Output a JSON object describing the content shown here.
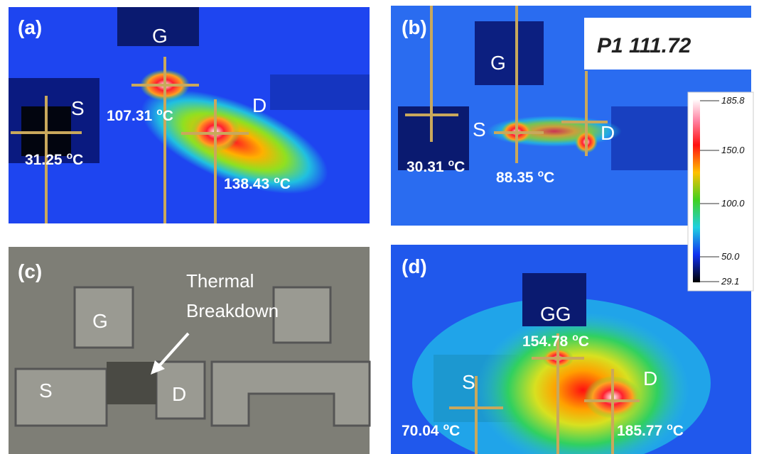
{
  "panels": [
    {
      "label": "(a)",
      "terminals": [
        "G",
        "S",
        "D"
      ],
      "temps": [
        {
          "value": "107.31",
          "deg": "o",
          "unit": "C"
        },
        {
          "value": "31.25",
          "deg": "o",
          "unit": "C"
        },
        {
          "value": "138.43",
          "deg": "o",
          "unit": "C"
        }
      ]
    },
    {
      "label": "(b)",
      "terminals": [
        "G",
        "S",
        "D"
      ],
      "readout": "P1 111.72",
      "temps": [
        {
          "value": "30.31",
          "deg": "o",
          "unit": "C"
        },
        {
          "value": "88.35",
          "deg": "o",
          "unit": "C"
        }
      ]
    },
    {
      "label": "(c)",
      "terminals": [
        "G",
        "S",
        "D"
      ],
      "annotation": [
        "Thermal",
        "Breakdown"
      ]
    },
    {
      "label": "(d)",
      "terminals": [
        "GG",
        "S",
        "D"
      ],
      "temps": [
        {
          "value": "154.78",
          "deg": "o",
          "unit": "C"
        },
        {
          "value": "70.04",
          "deg": "o",
          "unit": "C"
        },
        {
          "value": "185.77",
          "deg": "o",
          "unit": "C"
        }
      ]
    }
  ],
  "colorbar": {
    "ticks": [
      "185.8",
      "150.0",
      "100.0",
      "50.0",
      "29.1"
    ]
  }
}
